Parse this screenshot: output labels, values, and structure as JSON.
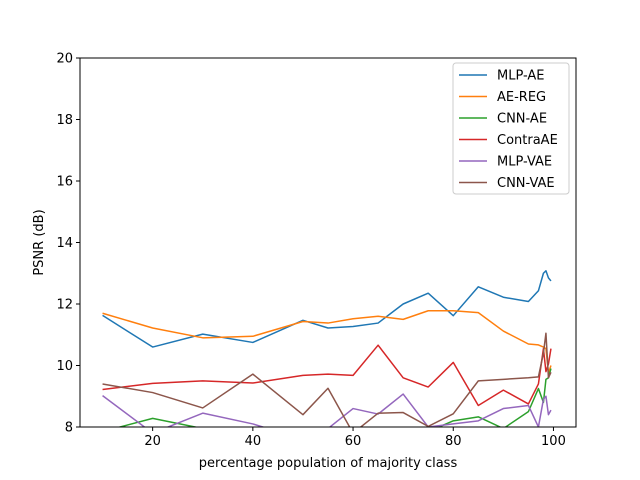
{
  "chart_data": {
    "type": "line",
    "title": "",
    "xlabel": "percentage population of majority class",
    "ylabel": "PSNR (dB)",
    "xlim": [
      5.5,
      104.5
    ],
    "ylim": [
      8,
      20
    ],
    "x_ticks": [
      20,
      40,
      60,
      80,
      100
    ],
    "y_ticks": [
      8,
      10,
      12,
      14,
      16,
      18,
      20
    ],
    "grid": false,
    "legend_position": "top-right",
    "series": [
      {
        "name": "MLP-AE",
        "color": "#1f77b4",
        "points": [
          [
            10,
            11.63
          ],
          [
            20,
            10.6
          ],
          [
            30,
            11.02
          ],
          [
            40,
            10.75
          ],
          [
            50,
            11.47
          ],
          [
            55,
            11.22
          ],
          [
            60,
            11.27
          ],
          [
            65,
            11.38
          ],
          [
            70,
            12.0
          ],
          [
            75,
            12.35
          ],
          [
            80,
            11.62
          ],
          [
            85,
            12.56
          ],
          [
            90,
            12.22
          ],
          [
            95,
            12.08
          ],
          [
            97,
            12.43
          ],
          [
            98,
            13.0
          ],
          [
            98.5,
            13.08
          ],
          [
            99,
            12.85
          ],
          [
            99.5,
            12.75
          ]
        ]
      },
      {
        "name": "AE-REG",
        "color": "#ff7f0e",
        "points": [
          [
            10,
            11.7
          ],
          [
            20,
            11.22
          ],
          [
            30,
            10.9
          ],
          [
            40,
            10.95
          ],
          [
            50,
            11.43
          ],
          [
            55,
            11.38
          ],
          [
            60,
            11.52
          ],
          [
            65,
            11.6
          ],
          [
            70,
            11.5
          ],
          [
            75,
            11.78
          ],
          [
            80,
            11.78
          ],
          [
            85,
            11.72
          ],
          [
            90,
            11.12
          ],
          [
            95,
            10.7
          ],
          [
            97,
            10.67
          ],
          [
            98,
            10.6
          ],
          [
            98.5,
            10.55
          ],
          [
            99,
            9.75
          ],
          [
            99.5,
            10.0
          ]
        ]
      },
      {
        "name": "CNN-AE",
        "color": "#2ca02c",
        "points": [
          [
            10,
            7.85
          ],
          [
            20,
            8.28
          ],
          [
            30,
            7.95
          ],
          [
            40,
            7.75
          ],
          [
            50,
            7.6
          ],
          [
            55,
            7.7
          ],
          [
            60,
            7.8
          ],
          [
            65,
            7.9
          ],
          [
            70,
            7.95
          ],
          [
            75,
            7.85
          ],
          [
            80,
            8.2
          ],
          [
            85,
            8.33
          ],
          [
            90,
            7.95
          ],
          [
            95,
            8.5
          ],
          [
            97,
            9.25
          ],
          [
            98,
            8.8
          ],
          [
            98.5,
            9.55
          ],
          [
            99,
            9.6
          ],
          [
            99.5,
            9.9
          ]
        ]
      },
      {
        "name": "ContraAE",
        "color": "#d62728",
        "points": [
          [
            10,
            9.22
          ],
          [
            20,
            9.42
          ],
          [
            30,
            9.5
          ],
          [
            40,
            9.43
          ],
          [
            50,
            9.68
          ],
          [
            55,
            9.72
          ],
          [
            60,
            9.68
          ],
          [
            65,
            10.66
          ],
          [
            70,
            9.6
          ],
          [
            75,
            9.3
          ],
          [
            80,
            10.1
          ],
          [
            85,
            8.7
          ],
          [
            90,
            9.2
          ],
          [
            95,
            8.75
          ],
          [
            97,
            9.4
          ],
          [
            98,
            10.55
          ],
          [
            98.5,
            9.8
          ],
          [
            99,
            10.05
          ],
          [
            99.5,
            10.55
          ]
        ]
      },
      {
        "name": "MLP-VAE",
        "color": "#9467bd",
        "points": [
          [
            10,
            9.02
          ],
          [
            20,
            7.8
          ],
          [
            30,
            8.45
          ],
          [
            40,
            8.1
          ],
          [
            50,
            7.6
          ],
          [
            55,
            7.95
          ],
          [
            60,
            8.6
          ],
          [
            65,
            8.42
          ],
          [
            70,
            9.07
          ],
          [
            75,
            8.0
          ],
          [
            80,
            8.1
          ],
          [
            85,
            8.2
          ],
          [
            90,
            8.6
          ],
          [
            95,
            8.7
          ],
          [
            97,
            8.0
          ],
          [
            98,
            8.9
          ],
          [
            98.5,
            9.0
          ],
          [
            99,
            8.4
          ],
          [
            99.5,
            8.55
          ]
        ]
      },
      {
        "name": "CNN-VAE",
        "color": "#8c564b",
        "points": [
          [
            10,
            9.4
          ],
          [
            20,
            9.12
          ],
          [
            30,
            8.62
          ],
          [
            40,
            9.72
          ],
          [
            50,
            8.4
          ],
          [
            55,
            9.26
          ],
          [
            60,
            7.8
          ],
          [
            65,
            8.45
          ],
          [
            70,
            8.47
          ],
          [
            75,
            8.02
          ],
          [
            80,
            8.43
          ],
          [
            85,
            9.5
          ],
          [
            90,
            9.55
          ],
          [
            95,
            9.6
          ],
          [
            97,
            9.63
          ],
          [
            98,
            10.4
          ],
          [
            98.5,
            11.05
          ],
          [
            99,
            9.6
          ],
          [
            99.5,
            9.78
          ]
        ]
      }
    ]
  }
}
